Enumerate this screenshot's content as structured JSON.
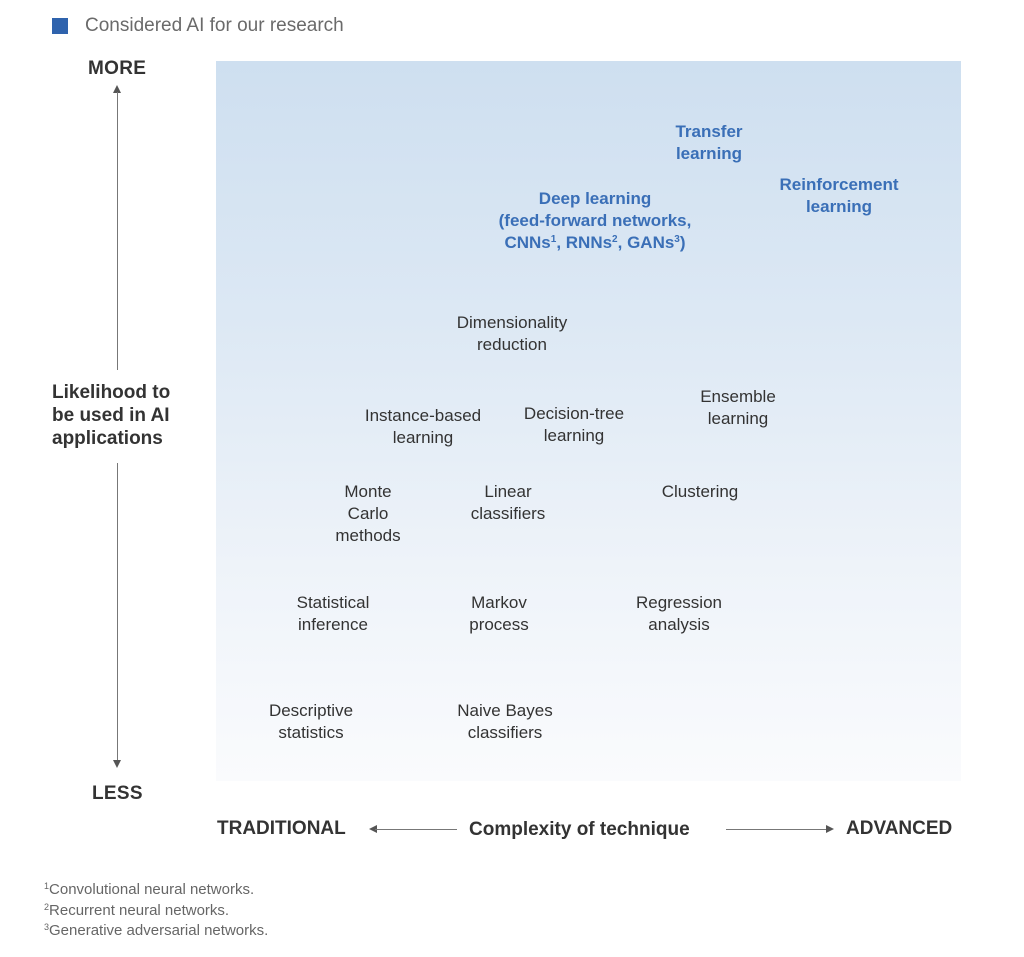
{
  "legend": {
    "label": "Considered AI for our research",
    "color": "#2f63ad"
  },
  "axes": {
    "y": {
      "title": "Likelihood to\nbe used in AI\napplications",
      "high_label": "MORE",
      "low_label": "LESS"
    },
    "x": {
      "title": "Complexity of technique",
      "low_label": "TRADITIONAL",
      "high_label": "ADVANCED"
    }
  },
  "colors": {
    "highlight_text": "#3a6fb7",
    "normal_text": "#333333",
    "plot_gradient_top": "#cedff0",
    "plot_gradient_bottom": "#fafbfd"
  },
  "techniques": [
    {
      "id": "transfer",
      "lines": [
        "Transfer",
        "learning"
      ],
      "highlighted": true
    },
    {
      "id": "reinforcement",
      "lines": [
        "Reinforcement",
        "learning"
      ],
      "highlighted": true
    },
    {
      "id": "deep",
      "lines": [
        "Deep learning",
        "(feed-forward networks,",
        "CNNs¹, RNNs², GANs³)"
      ],
      "highlighted": true
    },
    {
      "id": "dimensionality",
      "lines": [
        "Dimensionality",
        "reduction"
      ],
      "highlighted": false
    },
    {
      "id": "instance",
      "lines": [
        "Instance-based",
        "learning"
      ],
      "highlighted": false
    },
    {
      "id": "decision-tree",
      "lines": [
        "Decision-tree",
        "learning"
      ],
      "highlighted": false
    },
    {
      "id": "ensemble",
      "lines": [
        "Ensemble",
        "learning"
      ],
      "highlighted": false
    },
    {
      "id": "monte-carlo",
      "lines": [
        "Monte",
        "Carlo",
        "methods"
      ],
      "highlighted": false
    },
    {
      "id": "linear",
      "lines": [
        "Linear",
        "classifiers"
      ],
      "highlighted": false
    },
    {
      "id": "clustering",
      "lines": [
        "Clustering"
      ],
      "highlighted": false
    },
    {
      "id": "statistical",
      "lines": [
        "Statistical",
        "inference"
      ],
      "highlighted": false
    },
    {
      "id": "markov",
      "lines": [
        "Markov",
        "process"
      ],
      "highlighted": false
    },
    {
      "id": "regression",
      "lines": [
        "Regression",
        "analysis"
      ],
      "highlighted": false
    },
    {
      "id": "descriptive",
      "lines": [
        "Descriptive",
        "statistics"
      ],
      "highlighted": false
    },
    {
      "id": "naive-bayes",
      "lines": [
        "Naive Bayes",
        "classifiers"
      ],
      "highlighted": false
    }
  ],
  "footnotes": [
    {
      "mark": "1",
      "text": "Convolutional neural networks."
    },
    {
      "mark": "2",
      "text": "Recurrent neural networks."
    },
    {
      "mark": "3",
      "text": "Generative adversarial networks."
    }
  ]
}
